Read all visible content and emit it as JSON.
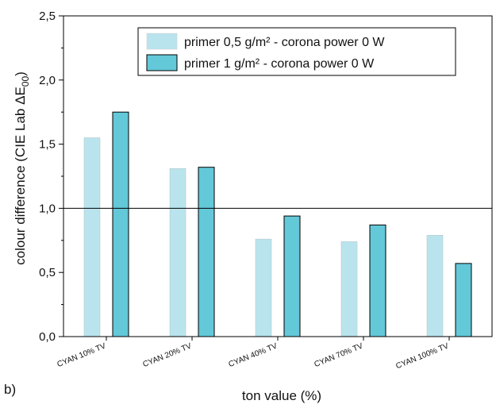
{
  "chart_data": {
    "type": "bar",
    "categories": [
      "CYAN 10% TV",
      "CYAN 20% TV",
      "CYAN 40% TV",
      "CYAN 70% TV",
      "CYAN 100% TV"
    ],
    "series": [
      {
        "name": "primer 0,5 g/m² - corona power 0 W",
        "color": "#b9e4ee",
        "values": [
          1.55,
          1.31,
          0.76,
          0.74,
          0.79
        ]
      },
      {
        "name": "primer 1 g/m² - corona power 0 W",
        "color": "#63c8d8",
        "values": [
          1.75,
          1.32,
          0.94,
          0.87,
          0.57
        ]
      }
    ],
    "ylim": [
      0,
      2.5
    ],
    "yticks": [
      "0,0",
      "0,5",
      "1,0",
      "1,5",
      "2,0",
      "2,5"
    ],
    "reference_line": 1.0,
    "xlabel": "ton value (%)",
    "ylabel": {
      "main": "colour difference (CIE Lab ",
      "delta": "ΔE",
      "sub": "00",
      "close": ")"
    },
    "panel_label": "b)",
    "legend_position": "top-right",
    "grid": false
  }
}
